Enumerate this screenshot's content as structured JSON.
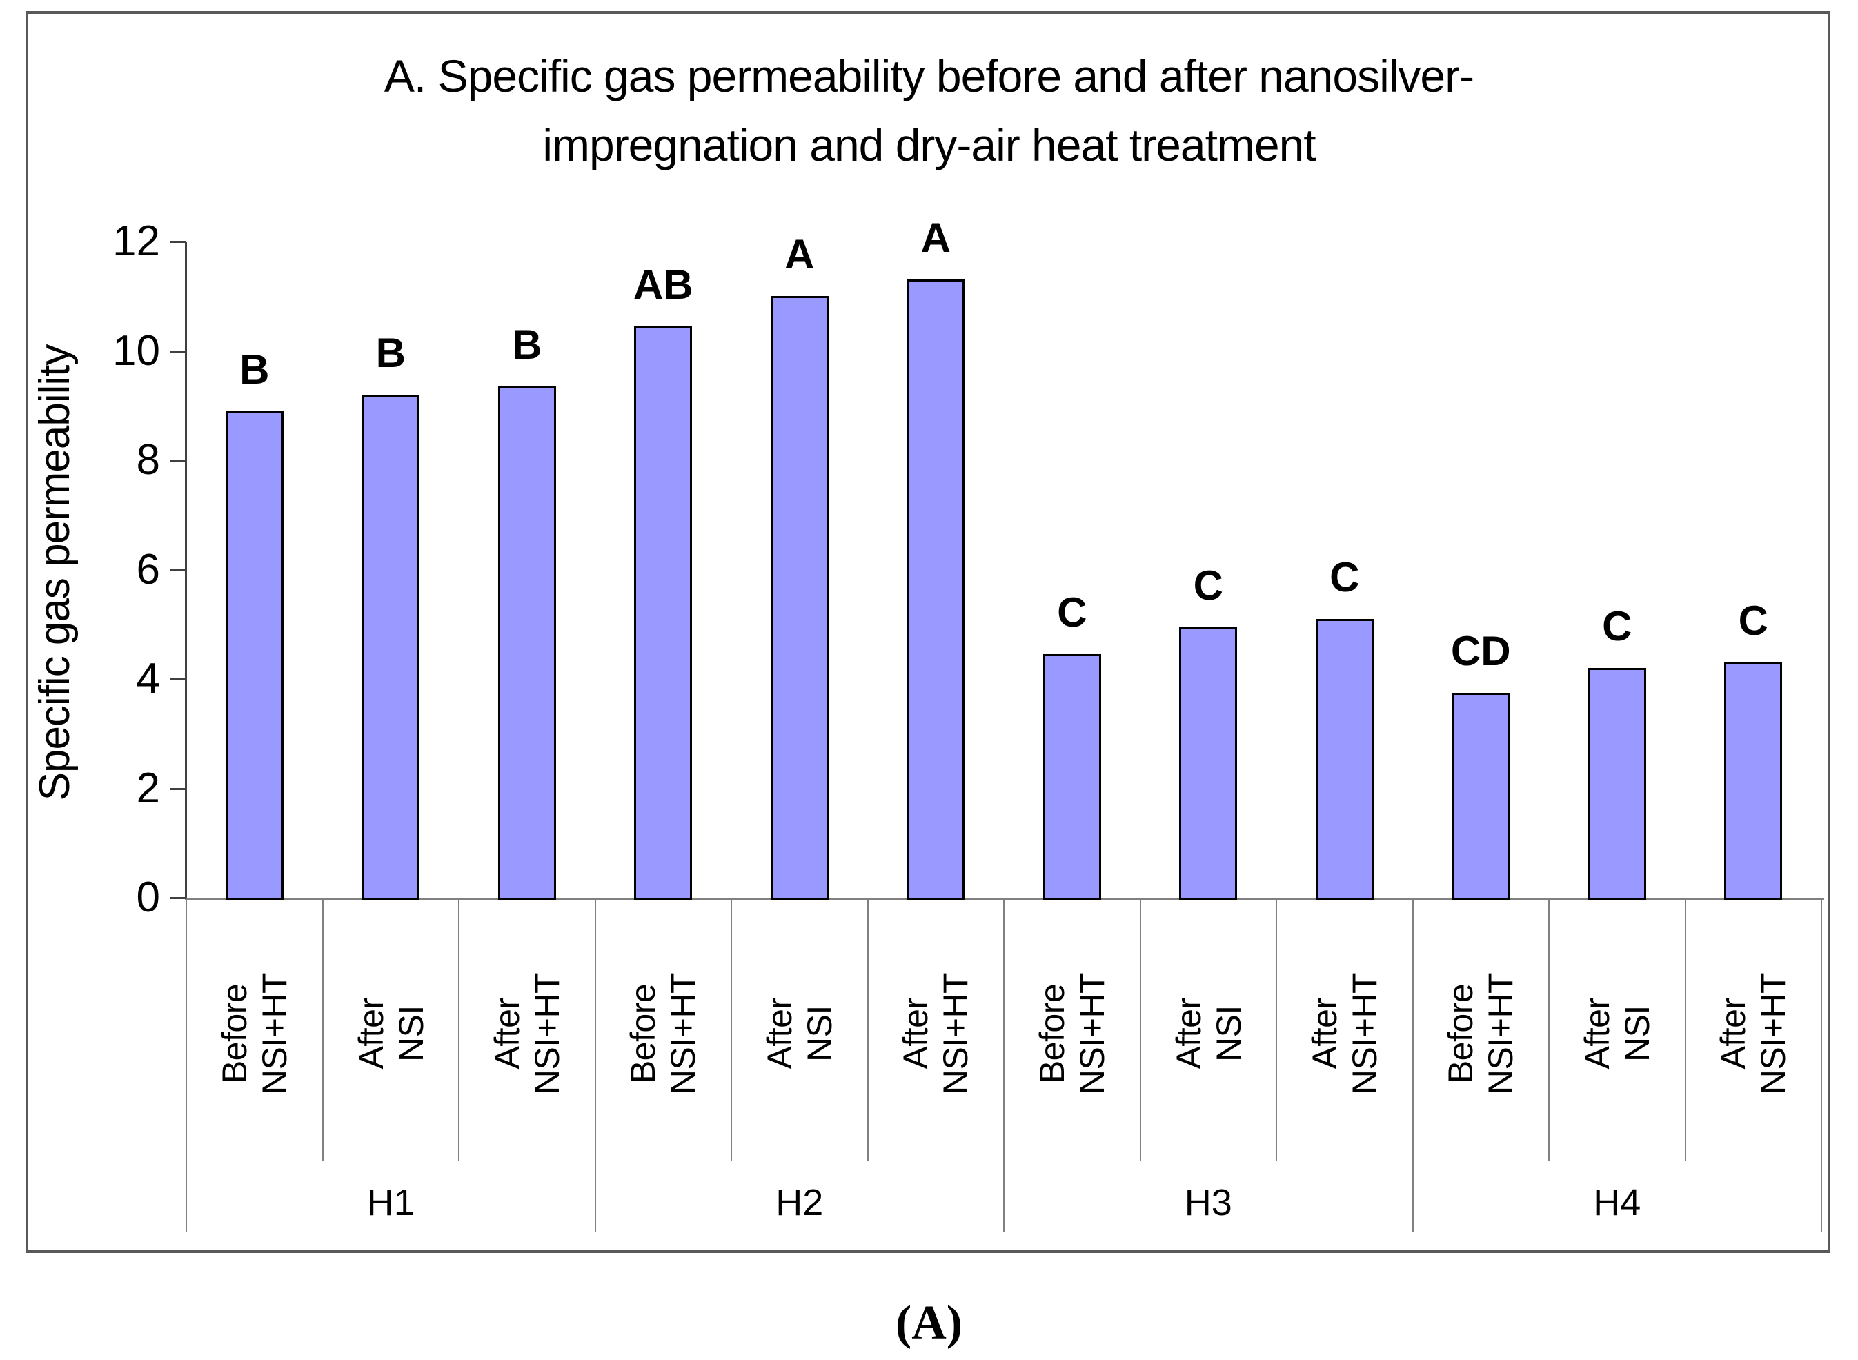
{
  "page": {
    "caption": "(A)"
  },
  "title": {
    "line1": "A. Specific gas permeability before and after nanosilver-",
    "line2": "impregnation and dry-air heat treatment"
  },
  "colors": {
    "bar_fill": "#9999FF",
    "bar_border": "#000000",
    "y_axis_line": "#404040",
    "x_axis_line": "#808080",
    "separator": "#808080",
    "frame_border": "#595959"
  },
  "chart_data": {
    "type": "bar",
    "title": "A. Specific gas permeability before and after nanosilver-impregnation and dry-air heat treatment",
    "xlabel": "",
    "ylabel": "Specific gas permeability",
    "ylim": [
      0,
      12
    ],
    "yticks": [
      0,
      2,
      4,
      6,
      8,
      10,
      12
    ],
    "grid": false,
    "legend": false,
    "groups": [
      {
        "label": "H1",
        "bars": [
          {
            "category_lines": [
              "Before",
              "NSI+HT"
            ],
            "value": 8.9,
            "letter": "B"
          },
          {
            "category_lines": [
              "After NSI"
            ],
            "value": 9.2,
            "letter": "B"
          },
          {
            "category_lines": [
              "After",
              "NSI+HT"
            ],
            "value": 9.35,
            "letter": "B"
          }
        ]
      },
      {
        "label": "H2",
        "bars": [
          {
            "category_lines": [
              "Before",
              "NSI+HT"
            ],
            "value": 10.45,
            "letter": "AB"
          },
          {
            "category_lines": [
              "After NSI"
            ],
            "value": 11.0,
            "letter": "A"
          },
          {
            "category_lines": [
              "After",
              "NSI+HT"
            ],
            "value": 11.3,
            "letter": "A"
          }
        ]
      },
      {
        "label": "H3",
        "bars": [
          {
            "category_lines": [
              "Before",
              "NSI+HT"
            ],
            "value": 4.45,
            "letter": "C"
          },
          {
            "category_lines": [
              "After NSI"
            ],
            "value": 4.95,
            "letter": "C"
          },
          {
            "category_lines": [
              "After",
              "NSI+HT"
            ],
            "value": 5.1,
            "letter": "C"
          }
        ]
      },
      {
        "label": "H4",
        "bars": [
          {
            "category_lines": [
              "Before",
              "NSI+HT"
            ],
            "value": 3.75,
            "letter": "CD"
          },
          {
            "category_lines": [
              "After NSI"
            ],
            "value": 4.2,
            "letter": "C"
          },
          {
            "category_lines": [
              "After",
              "NSI+HT"
            ],
            "value": 4.3,
            "letter": "C"
          }
        ]
      }
    ]
  }
}
